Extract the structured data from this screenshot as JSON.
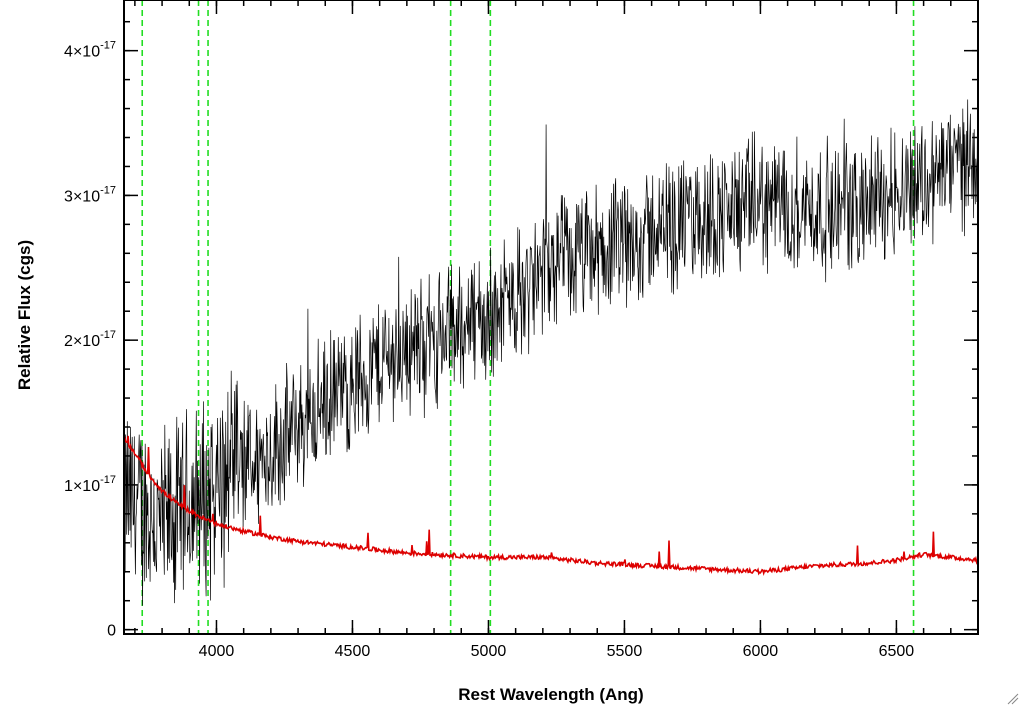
{
  "chart_data": {
    "type": "line",
    "title": "",
    "xlabel": "Rest Wavelength (Ang)",
    "ylabel": "Relative Flux (cgs)",
    "xlim": [
      3660,
      6800
    ],
    "ylim": [
      -3e-19,
      4.35e-17
    ],
    "x_ticks": [
      {
        "value": 4000,
        "label": "4000"
      },
      {
        "value": 4500,
        "label": "4500"
      },
      {
        "value": 5000,
        "label": "5000"
      },
      {
        "value": 5500,
        "label": "5500"
      },
      {
        "value": 6000,
        "label": "6000"
      },
      {
        "value": 6500,
        "label": "6500"
      }
    ],
    "y_ticks": [
      {
        "value": 0,
        "label": "0",
        "mantissa": "",
        "times": "",
        "exponent": ""
      },
      {
        "value": 1e-17,
        "label": "1×10-17",
        "mantissa": "1",
        "times": "×10",
        "exponent": "-17"
      },
      {
        "value": 2e-17,
        "label": "2×10-17",
        "mantissa": "2",
        "times": "×10",
        "exponent": "-17"
      },
      {
        "value": 3e-17,
        "label": "3×10-17",
        "mantissa": "3",
        "times": "×10",
        "exponent": "-17"
      },
      {
        "value": 4e-17,
        "label": "4×10-17",
        "mantissa": "4",
        "times": "×10",
        "exponent": "-17"
      }
    ],
    "x_minor_step": 100,
    "y_minor_step": 2e-18,
    "grid": false,
    "legend": "none",
    "reference_lines_x": [
      3727,
      3934,
      3969,
      4861,
      5007,
      6563
    ],
    "series": [
      {
        "color": "#000000",
        "style": "noisy spectrum",
        "x": [
          3660,
          3700,
          3750,
          3800,
          3850,
          3900,
          3950,
          4000,
          4100,
          4200,
          4300,
          4400,
          4500,
          4600,
          4700,
          4800,
          4900,
          4950,
          5000,
          5100,
          5200,
          5300,
          5400,
          5500,
          5600,
          5700,
          5800,
          5900,
          6000,
          6100,
          6200,
          6300,
          6400,
          6500,
          6550,
          6600,
          6700,
          6800
        ],
        "y": [
          9e-18,
          8.5e-18,
          8e-18,
          7e-18,
          7.5e-18,
          8.5e-18,
          9e-18,
          1e-17,
          1.1e-17,
          1.25e-17,
          1.4e-17,
          1.55e-17,
          1.7e-17,
          1.85e-17,
          1.95e-17,
          2e-17,
          2.1e-17,
          2.15e-17,
          2.15e-17,
          2.3e-17,
          2.45e-17,
          2.55e-17,
          2.6e-17,
          2.65e-17,
          2.75e-17,
          2.8e-17,
          2.85e-17,
          2.9e-17,
          2.95e-17,
          2.95e-17,
          2.9e-17,
          2.9e-17,
          2.95e-17,
          3.05e-17,
          3.1e-17,
          3.1e-17,
          3.2e-17,
          3.3e-17
        ]
      },
      {
        "color": "#dd0000",
        "style": "model spectrum",
        "x": [
          3660,
          3700,
          3750,
          3800,
          3850,
          3900,
          3950,
          4000,
          4100,
          4200,
          4300,
          4400,
          4500,
          4600,
          4700,
          4800,
          4900,
          5000,
          5100,
          5200,
          5300,
          5400,
          5500,
          5600,
          5700,
          5800,
          5900,
          6000,
          6100,
          6200,
          6300,
          6400,
          6500,
          6600,
          6700,
          6800
        ],
        "y": [
          1.32e-17,
          1.22e-17,
          1.07e-17,
          9.6e-18,
          8.8e-18,
          8.2e-18,
          7.7e-18,
          7.3e-18,
          6.8e-18,
          6.4e-18,
          6.1e-18,
          5.9e-18,
          5.7e-18,
          5.5e-18,
          5.3e-18,
          5.2e-18,
          5.1e-18,
          5e-18,
          5e-18,
          5e-18,
          4.8e-18,
          4.6e-18,
          4.5e-18,
          4.4e-18,
          4.3e-18,
          4.2e-18,
          4.1e-18,
          4e-18,
          4.2e-18,
          4.4e-18,
          4.5e-18,
          4.6e-18,
          4.8e-18,
          5.2e-18,
          5e-18,
          4.8e-18
        ]
      }
    ],
    "colors": {
      "reference_line": "#22dd22",
      "axes": "#000000",
      "background": "#ffffff"
    }
  }
}
